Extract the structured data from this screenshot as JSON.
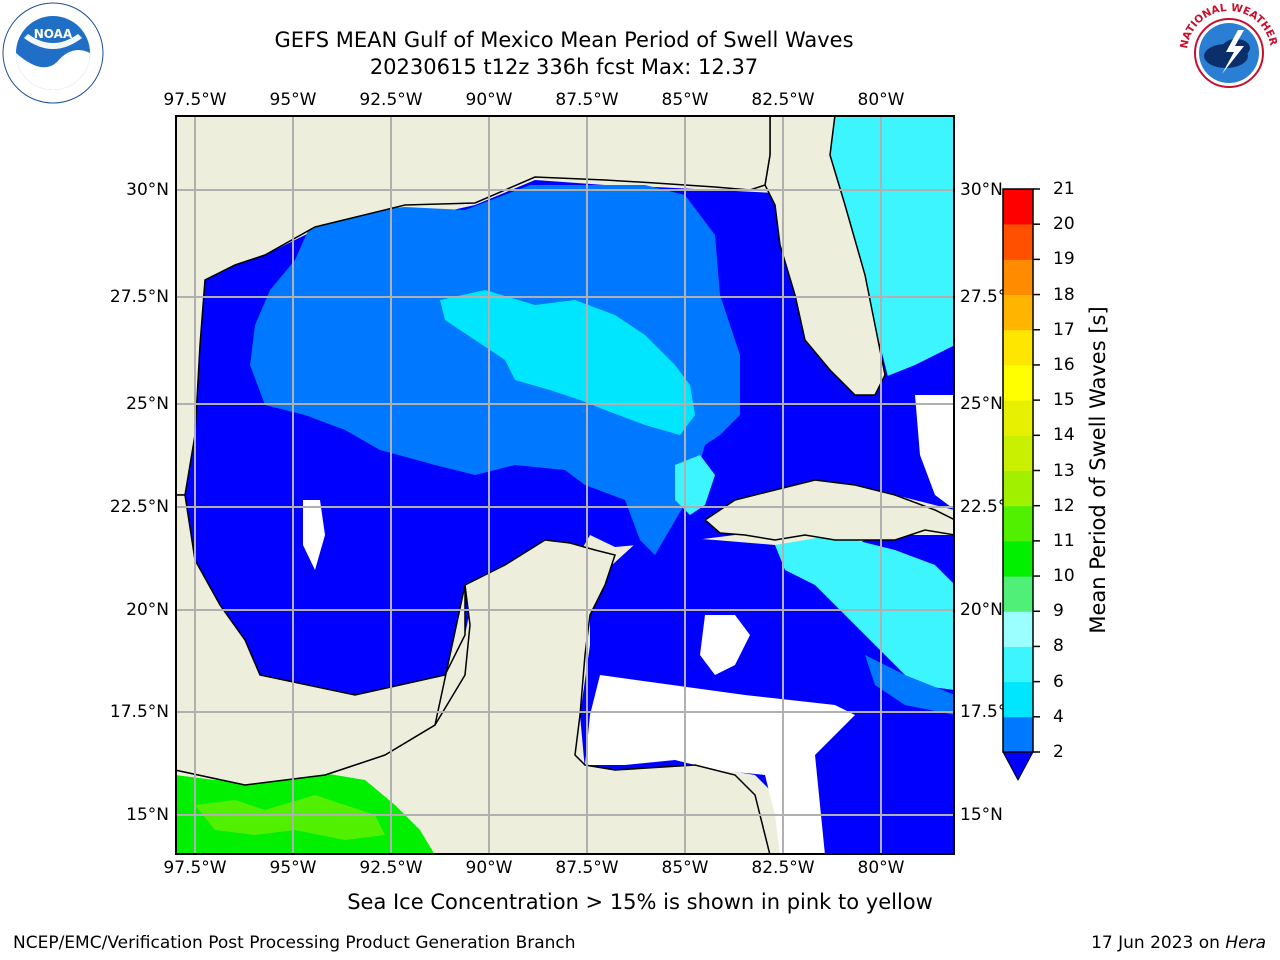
{
  "title": {
    "line1": "GEFS MEAN Gulf of Mexico Mean Period of Swell Waves",
    "line2": "20230615 t12z 336h fcst   Max: 12.37"
  },
  "logos": {
    "left": {
      "name": "noaa-logo",
      "text": "NOAA",
      "ring_text": "NATIONAL OCEANIC AND ATMOSPHERIC ADMINISTRATION · U.S. DEPARTMENT OF COMMERCE"
    },
    "right": {
      "name": "nws-logo",
      "ring_text": "NATIONAL WEATHER SERVICE"
    }
  },
  "map": {
    "lon_labels": [
      "97.5°W",
      "95°W",
      "92.5°W",
      "90°W",
      "87.5°W",
      "85°W",
      "82.5°W",
      "80°W"
    ],
    "lat_labels": [
      "30°N",
      "27.5°N",
      "25°N",
      "22.5°N",
      "20°N",
      "17.5°N",
      "15°N"
    ],
    "lon_range": [
      -98,
      -78.2
    ],
    "lat_range": [
      14,
      31.8
    ],
    "colors": {
      "land": "#eeeedc",
      "grid": "#b0b0b0",
      "coast": "#000000"
    }
  },
  "colorbar": {
    "label": "Mean Period of Swell Waves [s]",
    "ticks": [
      "2",
      "4",
      "6",
      "8",
      "9",
      "10",
      "11",
      "12",
      "13",
      "14",
      "15",
      "16",
      "17",
      "18",
      "19",
      "20",
      "21"
    ],
    "colors": [
      "#0078ff",
      "#00e6ff",
      "#3cf5ff",
      "#9bffff",
      "#50f078",
      "#00f000",
      "#50f000",
      "#a0f000",
      "#c8f000",
      "#e6f000",
      "#ffff00",
      "#ffe600",
      "#ffb400",
      "#ff8c00",
      "#ff5000",
      "#ff2800",
      "#ff0000"
    ],
    "extend_color": "#0000ff"
  },
  "notes": {
    "ice": "Sea Ice Concentration > 15% is shown in pink to yellow"
  },
  "footer": {
    "left": "NCEP/EMC/Verification Post Processing Product Generation Branch",
    "right_prefix": "17 Jun 2023 on ",
    "right_host": "Hera"
  }
}
